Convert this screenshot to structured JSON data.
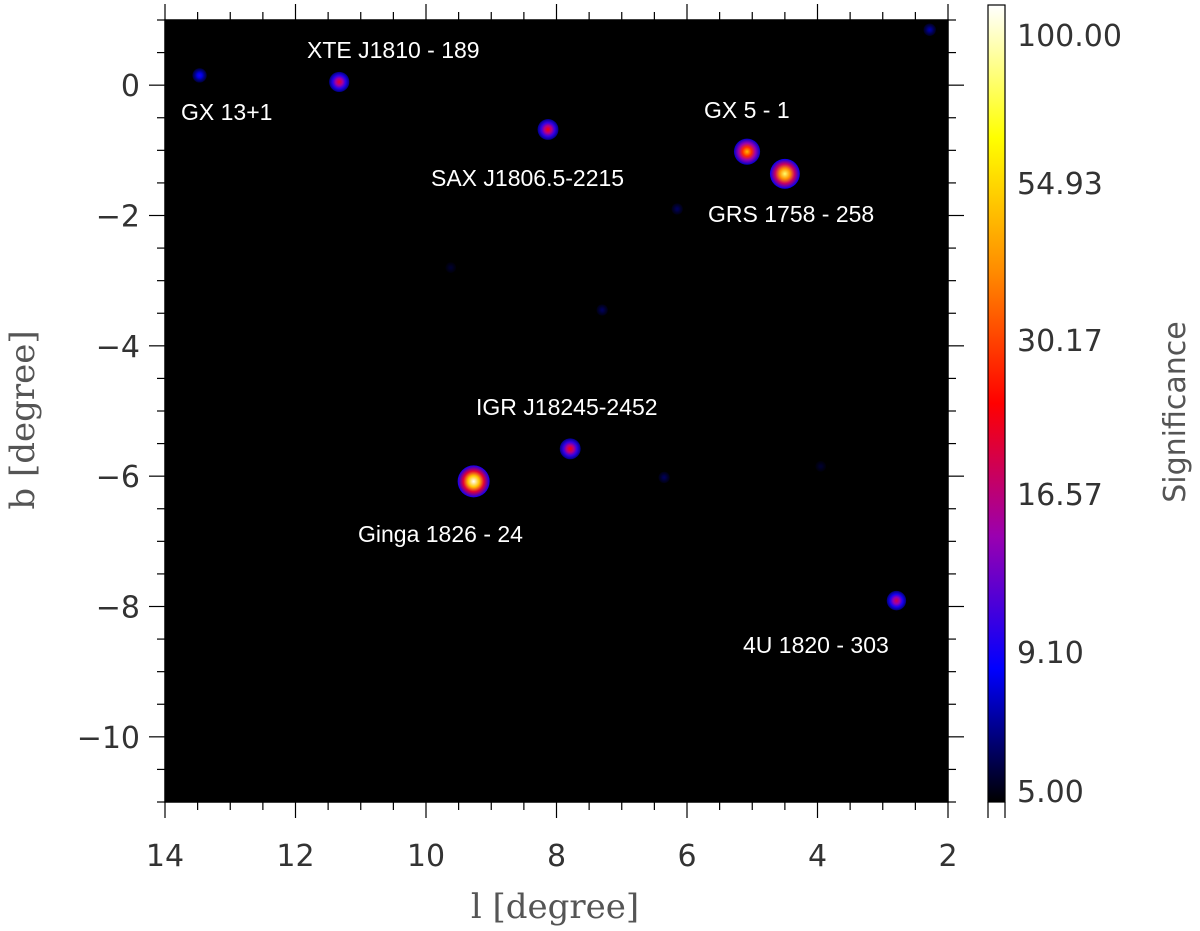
{
  "chart_data": {
    "type": "heatmap",
    "xlabel": "l [degree]",
    "ylabel": "b [degree]",
    "xlim": [
      14,
      2
    ],
    "ylim": [
      -11,
      1
    ],
    "xticks": [
      14,
      12,
      10,
      8,
      6,
      4,
      2
    ],
    "xtick_labels": [
      "14",
      "12",
      "10",
      "8",
      "6",
      "4",
      "2"
    ],
    "yticks": [
      0,
      -2,
      -4,
      -6,
      -8,
      -10
    ],
    "ytick_labels": [
      "0",
      "−2",
      "−4",
      "−6",
      "−8",
      "−10"
    ],
    "background_color": "#000000",
    "colorbar": {
      "title": "Significance",
      "ticks": [
        5.0,
        9.1,
        16.57,
        30.17,
        54.93,
        100.0
      ],
      "tick_labels": [
        "5.00",
        "9.10",
        "16.57",
        "30.17",
        "54.93",
        "100.00"
      ],
      "scale": "log",
      "colormap": [
        "#000000",
        "#0000ff",
        "#9a00b0",
        "#ff0000",
        "#ff8c00",
        "#ffff00",
        "#ffffff"
      ]
    },
    "sources": [
      {
        "label": "GX 13+1",
        "l": 13.47,
        "b": 0.15,
        "significance": 9
      },
      {
        "label": "XTE J1810 - 189",
        "l": 11.33,
        "b": 0.05,
        "significance": 20
      },
      {
        "label": "SAX J1806.5-2215",
        "l": 8.13,
        "b": -0.68,
        "significance": 22
      },
      {
        "label": "GX 5 - 1",
        "l": 5.08,
        "b": -1.02,
        "significance": 45
      },
      {
        "label": "GRS 1758 - 258",
        "l": 4.5,
        "b": -1.36,
        "significance": 75
      },
      {
        "label": "IGR J18245-2452",
        "l": 7.79,
        "b": -5.58,
        "significance": 22
      },
      {
        "label": "Ginga 1826 - 24",
        "l": 9.27,
        "b": -6.08,
        "significance": 100
      },
      {
        "label": "4U  1820 - 303",
        "l": 2.79,
        "b": -7.91,
        "significance": 18
      }
    ],
    "faint_spots": [
      {
        "l": 2.28,
        "b": 0.85,
        "significance": 7
      },
      {
        "l": 6.15,
        "b": -1.9,
        "significance": 6
      },
      {
        "l": 7.3,
        "b": -3.45,
        "significance": 6
      },
      {
        "l": 6.35,
        "b": -6.02,
        "significance": 6
      },
      {
        "l": 9.62,
        "b": -2.8,
        "significance": 5.5
      },
      {
        "l": 3.95,
        "b": -5.85,
        "significance": 5.5
      }
    ]
  }
}
